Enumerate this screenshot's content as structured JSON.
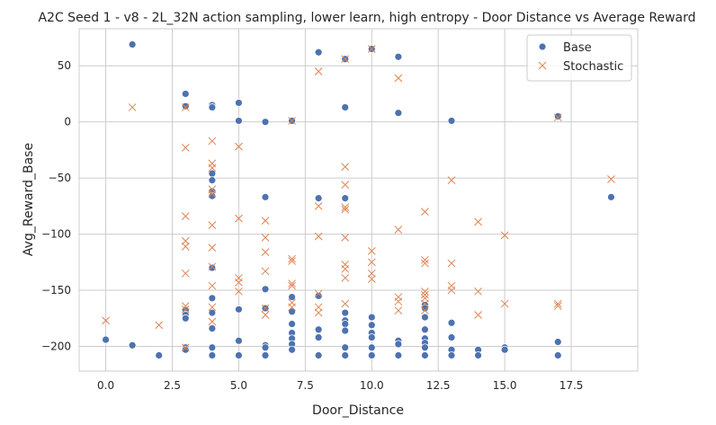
{
  "chart_data": {
    "type": "scatter",
    "title": "A2C Seed 1 - v8 - 2L_32N action sampling, lower learn, high entropy - Door Distance vs Average Reward",
    "xlabel": "Door_Distance",
    "ylabel": "Avg_Reward_Base",
    "xlim": [
      -1.0,
      20.0
    ],
    "ylim": [
      -222,
      83
    ],
    "xticks": [
      0.0,
      2.5,
      5.0,
      7.5,
      10.0,
      12.5,
      15.0,
      17.5
    ],
    "xtick_labels": [
      "0.0",
      "2.5",
      "5.0",
      "7.5",
      "10.0",
      "12.5",
      "15.0",
      "17.5"
    ],
    "yticks": [
      50,
      0,
      -50,
      -100,
      -150,
      -200
    ],
    "ytick_labels": [
      "50",
      "0",
      "−50",
      "−100",
      "−150",
      "−200"
    ],
    "grid": true,
    "legend_position": "top-right",
    "series": [
      {
        "name": "Base",
        "marker": "circle",
        "color": "#4c72b0",
        "points": [
          [
            0,
            -194
          ],
          [
            1,
            69
          ],
          [
            1,
            -199
          ],
          [
            2,
            -208
          ],
          [
            3,
            25
          ],
          [
            3,
            14
          ],
          [
            3,
            -168
          ],
          [
            3,
            -172
          ],
          [
            3,
            -175
          ],
          [
            3,
            -201
          ],
          [
            3,
            -203
          ],
          [
            4,
            15
          ],
          [
            4,
            13
          ],
          [
            4,
            -46
          ],
          [
            4,
            -52
          ],
          [
            4,
            -62
          ],
          [
            4,
            -66
          ],
          [
            4,
            -130
          ],
          [
            4,
            -157
          ],
          [
            4,
            -170
          ],
          [
            4,
            -184
          ],
          [
            4,
            -201
          ],
          [
            4,
            -208
          ],
          [
            5,
            17
          ],
          [
            5,
            1
          ],
          [
            5,
            -167
          ],
          [
            5,
            -195
          ],
          [
            5,
            -208
          ],
          [
            6,
            0
          ],
          [
            6,
            -67
          ],
          [
            6,
            -149
          ],
          [
            6,
            -166
          ],
          [
            6,
            -199
          ],
          [
            6,
            -201
          ],
          [
            6,
            -208
          ],
          [
            7,
            1
          ],
          [
            7,
            -156
          ],
          [
            7,
            -169
          ],
          [
            7,
            -180
          ],
          [
            7,
            -188
          ],
          [
            7,
            -193
          ],
          [
            7,
            -198
          ],
          [
            7,
            -203
          ],
          [
            8,
            62
          ],
          [
            8,
            -68
          ],
          [
            8,
            -155
          ],
          [
            8,
            -185
          ],
          [
            8,
            -192
          ],
          [
            8,
            -208
          ],
          [
            9,
            56
          ],
          [
            9,
            13
          ],
          [
            9,
            -68
          ],
          [
            9,
            -170
          ],
          [
            9,
            -177
          ],
          [
            9,
            -180
          ],
          [
            9,
            -186
          ],
          [
            9,
            -201
          ],
          [
            9,
            -208
          ],
          [
            10,
            65
          ],
          [
            10,
            -174
          ],
          [
            10,
            -181
          ],
          [
            10,
            -188
          ],
          [
            10,
            -192
          ],
          [
            10,
            -201
          ],
          [
            10,
            -208
          ],
          [
            11,
            58
          ],
          [
            11,
            8
          ],
          [
            11,
            -195
          ],
          [
            11,
            -198
          ],
          [
            11,
            -208
          ],
          [
            12,
            -163
          ],
          [
            12,
            -166
          ],
          [
            12,
            -174
          ],
          [
            12,
            -185
          ],
          [
            12,
            -193
          ],
          [
            12,
            -197
          ],
          [
            12,
            -201
          ],
          [
            12,
            -208
          ],
          [
            13,
            1
          ],
          [
            13,
            -179
          ],
          [
            13,
            -192
          ],
          [
            13,
            -203
          ],
          [
            13,
            -208
          ],
          [
            14,
            -203
          ],
          [
            14,
            -208
          ],
          [
            15,
            -201
          ],
          [
            15,
            -203
          ],
          [
            17,
            5
          ],
          [
            17,
            -196
          ],
          [
            17,
            -208
          ],
          [
            19,
            -67
          ]
        ]
      },
      {
        "name": "Stochastic",
        "marker": "x",
        "color": "#dd8452",
        "points": [
          [
            0,
            -177
          ],
          [
            1,
            13
          ],
          [
            2,
            -181
          ],
          [
            3,
            13
          ],
          [
            3,
            -23
          ],
          [
            3,
            -84
          ],
          [
            3,
            -106
          ],
          [
            3,
            -111
          ],
          [
            3,
            -135
          ],
          [
            3,
            -164
          ],
          [
            3,
            -167
          ],
          [
            3,
            -201
          ],
          [
            4,
            -17
          ],
          [
            4,
            -37
          ],
          [
            4,
            -41
          ],
          [
            4,
            -60
          ],
          [
            4,
            -64
          ],
          [
            4,
            -92
          ],
          [
            4,
            -112
          ],
          [
            4,
            -129
          ],
          [
            4,
            -146
          ],
          [
            4,
            -165
          ],
          [
            4,
            -178
          ],
          [
            5,
            -22
          ],
          [
            5,
            -86
          ],
          [
            5,
            -139
          ],
          [
            5,
            -143
          ],
          [
            5,
            -151
          ],
          [
            6,
            -88
          ],
          [
            6,
            -103
          ],
          [
            6,
            -116
          ],
          [
            6,
            -133
          ],
          [
            6,
            -166
          ],
          [
            6,
            -172
          ],
          [
            7,
            1
          ],
          [
            7,
            -122
          ],
          [
            7,
            -124
          ],
          [
            7,
            -144
          ],
          [
            7,
            -146
          ],
          [
            7,
            -161
          ],
          [
            7,
            -165
          ],
          [
            8,
            45
          ],
          [
            8,
            -75
          ],
          [
            8,
            -102
          ],
          [
            8,
            -153
          ],
          [
            8,
            -165
          ],
          [
            8,
            -170
          ],
          [
            9,
            56
          ],
          [
            9,
            -40
          ],
          [
            9,
            -56
          ],
          [
            9,
            -76
          ],
          [
            9,
            -78
          ],
          [
            9,
            -103
          ],
          [
            9,
            -127
          ],
          [
            9,
            -131
          ],
          [
            9,
            -139
          ],
          [
            9,
            -162
          ],
          [
            10,
            65
          ],
          [
            10,
            -115
          ],
          [
            10,
            -125
          ],
          [
            10,
            -135
          ],
          [
            10,
            -140
          ],
          [
            11,
            39
          ],
          [
            11,
            -96
          ],
          [
            11,
            -156
          ],
          [
            11,
            -160
          ],
          [
            11,
            -168
          ],
          [
            12,
            -80
          ],
          [
            12,
            -123
          ],
          [
            12,
            -126
          ],
          [
            12,
            -151
          ],
          [
            12,
            -154
          ],
          [
            12,
            -157
          ],
          [
            12,
            -162
          ],
          [
            12,
            -168
          ],
          [
            13,
            -52
          ],
          [
            13,
            -126
          ],
          [
            13,
            -146
          ],
          [
            13,
            -150
          ],
          [
            14,
            -89
          ],
          [
            14,
            -151
          ],
          [
            14,
            -172
          ],
          [
            15,
            -101
          ],
          [
            15,
            -162
          ],
          [
            17,
            4
          ],
          [
            17,
            -162
          ],
          [
            17,
            -164
          ],
          [
            19,
            -51
          ]
        ]
      }
    ]
  }
}
